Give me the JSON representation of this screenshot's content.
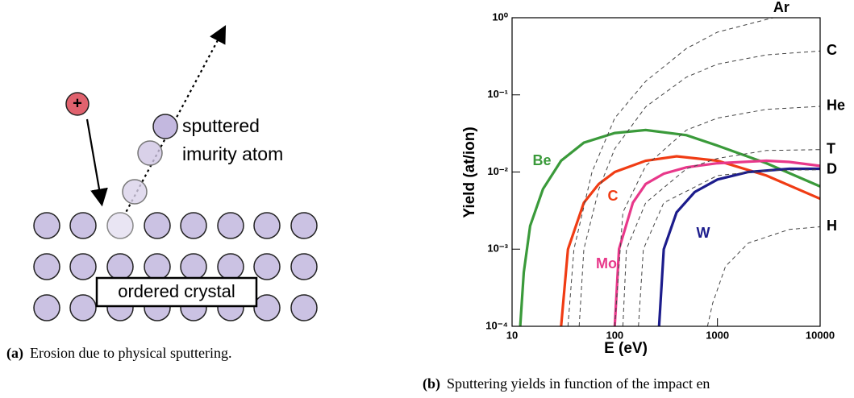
{
  "figure_a": {
    "ion_sign": "+",
    "sputtered_label": [
      "sputtered",
      "imurity atom"
    ],
    "crystal_label": "ordered crystal",
    "caption": {
      "label": "(a)",
      "text": "Erosion due to physical sputtering."
    }
  },
  "chart_data": {
    "type": "line",
    "xlabel": "E (eV)",
    "ylabel": "Yield (at/ion)",
    "xscale": "log",
    "yscale": "log",
    "xlim": [
      10,
      10000
    ],
    "ylim": [
      0.0001,
      1
    ],
    "xticks": [
      10,
      100,
      1000,
      10000
    ],
    "yticks": [
      {
        "value": 1,
        "label": "10⁰"
      },
      {
        "value": 0.1,
        "label": "10⁻¹"
      },
      {
        "value": 0.01,
        "label": "10⁻²"
      },
      {
        "value": 0.001,
        "label": "10⁻³"
      },
      {
        "value": 0.0001,
        "label": "10⁻⁴"
      }
    ],
    "series": [
      {
        "name": "Be",
        "color": "#3a9a3a",
        "dash": false,
        "x": [
          12,
          13,
          15,
          20,
          30,
          50,
          100,
          200,
          500,
          1000,
          3000,
          10000
        ],
        "values": [
          0.0001,
          0.0005,
          0.002,
          0.006,
          0.014,
          0.024,
          0.032,
          0.035,
          0.03,
          0.022,
          0.013,
          0.0065
        ]
      },
      {
        "name": "C",
        "color": "#f03c14",
        "dash": false,
        "x": [
          30,
          35,
          50,
          70,
          100,
          200,
          400,
          1000,
          3000,
          10000
        ],
        "values": [
          0.0001,
          0.001,
          0.004,
          0.007,
          0.01,
          0.014,
          0.016,
          0.014,
          0.009,
          0.0045
        ]
      },
      {
        "name": "Mo",
        "color": "#e8388a",
        "dash": false,
        "x": [
          100,
          110,
          150,
          200,
          300,
          500,
          1000,
          3000,
          5000,
          10000
        ],
        "values": [
          0.0001,
          0.001,
          0.004,
          0.007,
          0.0095,
          0.0115,
          0.013,
          0.014,
          0.0135,
          0.012
        ]
      },
      {
        "name": "W",
        "color": "#1c1c8c",
        "dash": false,
        "x": [
          270,
          300,
          400,
          600,
          1000,
          2000,
          5000,
          10000
        ],
        "values": [
          0.0001,
          0.001,
          0.003,
          0.0055,
          0.008,
          0.01,
          0.011,
          0.011
        ]
      },
      {
        "name": "Ar",
        "color": "#444444",
        "dash": true,
        "x": [
          35,
          40,
          60,
          100,
          200,
          500,
          1000,
          3500
        ],
        "values": [
          0.0001,
          0.001,
          0.01,
          0.05,
          0.15,
          0.4,
          0.65,
          1
        ]
      },
      {
        "name": "C",
        "color": "#444444",
        "dash": true,
        "x": [
          45,
          50,
          70,
          100,
          200,
          500,
          1000,
          3000,
          10000
        ],
        "values": [
          0.0001,
          0.001,
          0.006,
          0.02,
          0.07,
          0.17,
          0.25,
          0.33,
          0.37
        ]
      },
      {
        "name": "He",
        "color": "#444444",
        "dash": true,
        "x": [
          100,
          120,
          200,
          500,
          1000,
          3000,
          10000
        ],
        "values": [
          0.0001,
          0.003,
          0.012,
          0.035,
          0.05,
          0.065,
          0.071
        ]
      },
      {
        "name": "T",
        "color": "#444444",
        "dash": true,
        "x": [
          120,
          130,
          200,
          500,
          1000,
          3000,
          10000
        ],
        "values": [
          0.0001,
          0.001,
          0.004,
          0.011,
          0.015,
          0.019,
          0.0195
        ]
      },
      {
        "name": "D",
        "color": "#444444",
        "dash": true,
        "x": [
          170,
          190,
          300,
          1000,
          3000,
          10000
        ],
        "values": [
          0.0001,
          0.001,
          0.004,
          0.009,
          0.0105,
          0.0107
        ]
      },
      {
        "name": "H",
        "color": "#444444",
        "dash": true,
        "x": [
          800,
          900,
          1200,
          2000,
          5000,
          10000
        ],
        "values": [
          0.0001,
          0.0002,
          0.0006,
          0.0012,
          0.0018,
          0.00195
        ]
      }
    ]
  },
  "caption_b": {
    "label": "(b)",
    "text": "Sputtering yields in function of the impact en"
  }
}
